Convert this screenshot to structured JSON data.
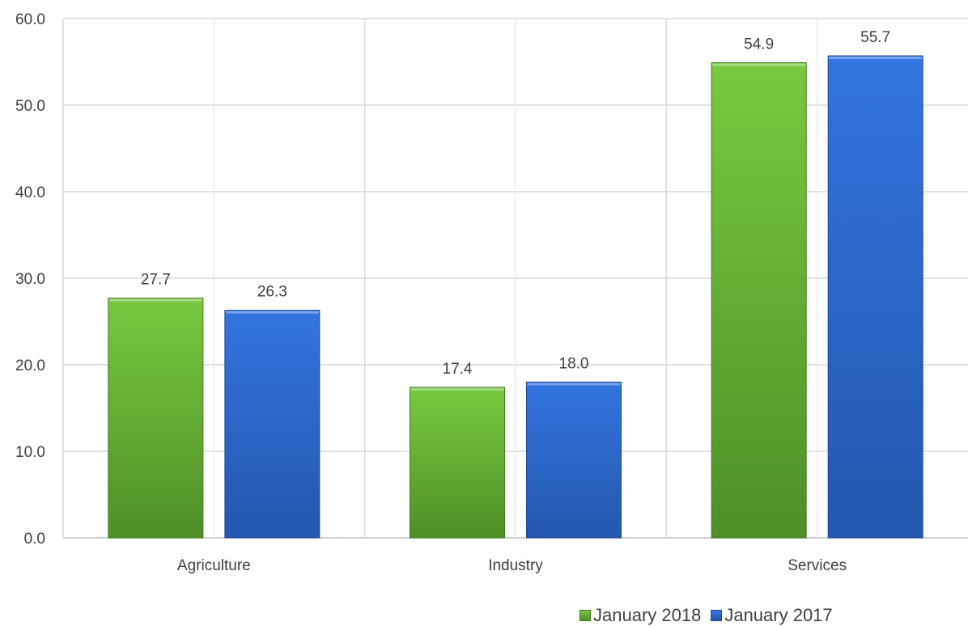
{
  "chart_data": {
    "type": "bar",
    "categories": [
      "Agriculture",
      "Industry",
      "Services"
    ],
    "series": [
      {
        "name": "January 2018",
        "values": [
          27.7,
          17.4,
          54.9
        ],
        "labels": [
          "27.7",
          "17.4",
          "54.9"
        ],
        "color": "#6dbb3a"
      },
      {
        "name": "January 2017",
        "values": [
          26.3,
          18.0,
          55.7
        ],
        "labels": [
          "26.3",
          "18.0",
          "55.7"
        ],
        "color": "#2f6fd8"
      }
    ],
    "ylim": [
      0,
      60
    ],
    "yticks": [
      "0.0",
      "10.0",
      "20.0",
      "30.0",
      "40.0",
      "50.0",
      "60.0"
    ],
    "grid": true,
    "legend_position": "bottom-right",
    "title": "",
    "xlabel": "",
    "ylabel": ""
  }
}
